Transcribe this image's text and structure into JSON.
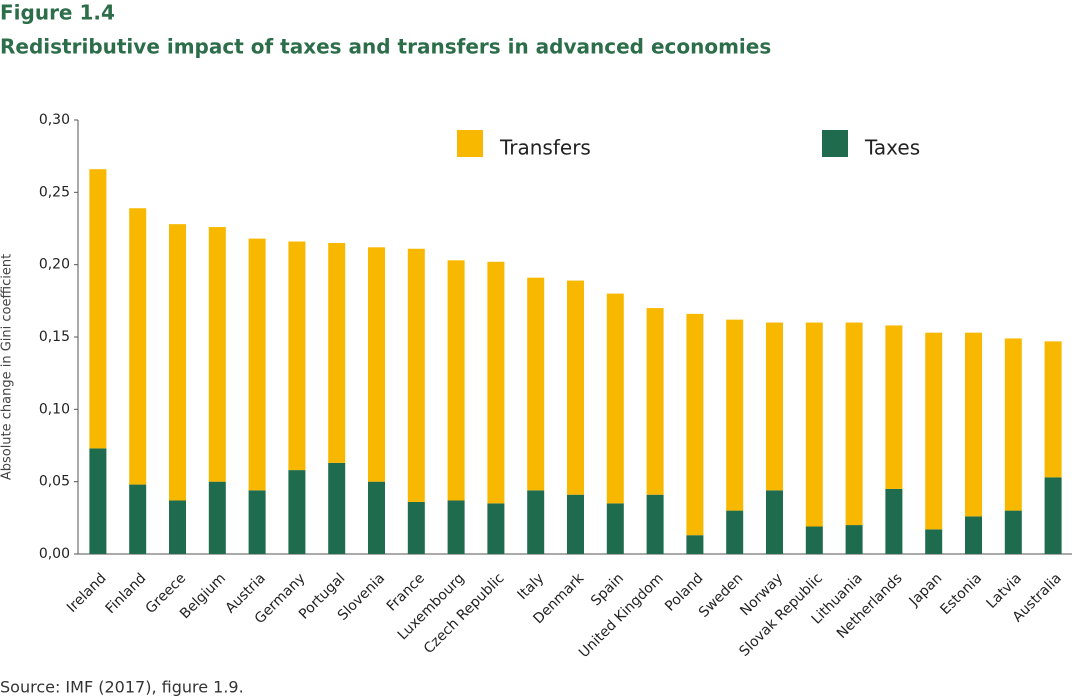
{
  "chart_data": {
    "type": "stacked-bar",
    "figure_label": "Figure 1.4",
    "title": "Redistributive impact of taxes and transfers in advanced economies",
    "y_label": "Absolute change in Gini coefficient",
    "source": "Source: IMF (2017), figure 1.9.",
    "categories": [
      "Ireland",
      "Finland",
      "Greece",
      "Belgium",
      "Austria",
      "Germany",
      "Portugal",
      "Slovenia",
      "France",
      "Luxembourg",
      "Czech Republic",
      "Italy",
      "Denmark",
      "Spain",
      "United Kingdom",
      "Poland",
      "Sweden",
      "Norway",
      "Slovak Republic",
      "Lithuania",
      "Netherlands",
      "Japan",
      "Estonia",
      "Latvia",
      "Australia"
    ],
    "series": [
      {
        "name": "Taxes",
        "color": "#1f6b4e",
        "values": [
          0.073,
          0.048,
          0.037,
          0.05,
          0.044,
          0.058,
          0.063,
          0.05,
          0.036,
          0.037,
          0.035,
          0.044,
          0.041,
          0.035,
          0.041,
          0.013,
          0.03,
          0.044,
          0.019,
          0.02,
          0.045,
          0.017,
          0.026,
          0.03,
          0.053
        ]
      },
      {
        "name": "Transfers",
        "color": "#f9b800",
        "values": [
          0.193,
          0.191,
          0.191,
          0.176,
          0.174,
          0.158,
          0.152,
          0.162,
          0.175,
          0.166,
          0.167,
          0.147,
          0.148,
          0.145,
          0.129,
          0.153,
          0.132,
          0.116,
          0.141,
          0.14,
          0.113,
          0.136,
          0.127,
          0.119,
          0.094
        ]
      }
    ],
    "ylim": [
      0,
      0.3
    ],
    "yticks": [
      {
        "value": 0,
        "label": "0,00"
      },
      {
        "value": 0.05,
        "label": "0,05"
      },
      {
        "value": 0.1,
        "label": "0,10"
      },
      {
        "value": 0.15,
        "label": "0,15"
      },
      {
        "value": 0.2,
        "label": "0,20"
      },
      {
        "value": 0.25,
        "label": "0,25"
      },
      {
        "value": 0.3,
        "label": "0,30"
      }
    ],
    "grid": false
  }
}
